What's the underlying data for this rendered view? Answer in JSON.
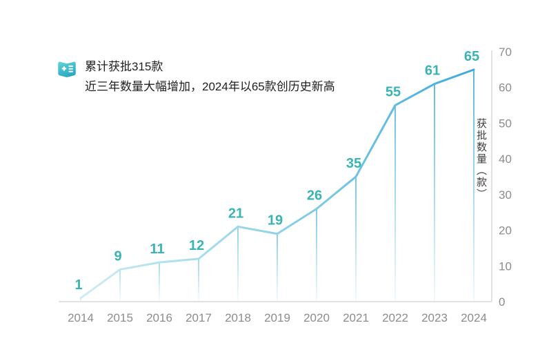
{
  "annotation": {
    "icon": "document-plus-icon",
    "line1": "累计获批315款",
    "line2": "近三年数量大幅增加，2024年以65款创历史新高"
  },
  "chart_data": {
    "type": "line",
    "title": "",
    "categories": [
      "2014",
      "2015",
      "2016",
      "2017",
      "2018",
      "2019",
      "2020",
      "2021",
      "2022",
      "2023",
      "2024"
    ],
    "series": [
      {
        "name": "获批数量",
        "values": [
          1,
          9,
          11,
          12,
          21,
          19,
          26,
          35,
          55,
          61,
          65
        ]
      }
    ],
    "ylabel": "获批数量（款）",
    "yticks": [
      0,
      10,
      20,
      30,
      40,
      50,
      60,
      70
    ],
    "ylim": [
      0,
      70
    ],
    "y_axis_side": "right",
    "grid": false,
    "legend": "none",
    "data_labels_shown": true,
    "colors": {
      "line_gradient_start": "#cdecf1",
      "line_gradient_mid": "#8ed2e8",
      "line_gradient_end": "#3fa9dc",
      "drop_line_start": "#b9e4ec",
      "drop_line_end": "#4fb3de",
      "data_label": "#39b3b3",
      "axis_line": "#d9d9d9",
      "tick_label": "#8c8c8c",
      "icon_gradient_top": "#5ed0d6",
      "icon_gradient_bottom": "#2aa9c2"
    }
  }
}
